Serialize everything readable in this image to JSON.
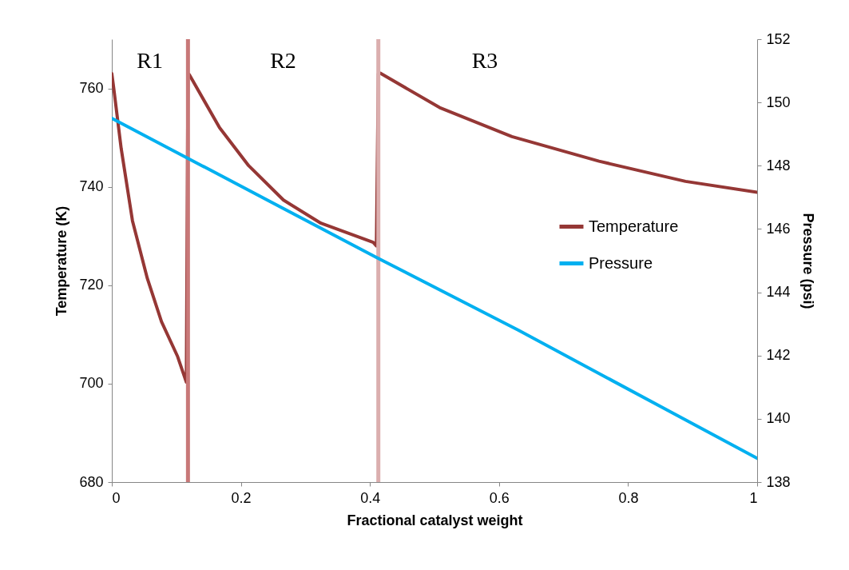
{
  "chart_data": {
    "type": "line",
    "xlabel": "Fractional catalyst weight",
    "ylabel": "Temperature (K)",
    "y2label": "Pressure (psi)",
    "series": [
      {
        "name": "Temperature",
        "color": "#953735",
        "x": [
          0,
          0.003,
          0.0145,
          0.032,
          0.055,
          0.077,
          0.102,
          0.1155,
          0.118,
          0.12,
          0.167,
          0.212,
          0.266,
          0.324,
          0.405,
          0.41,
          0.413,
          0.416,
          0.508,
          0.62,
          0.755,
          0.889,
          1
        ],
        "values": [
          763,
          760,
          747.8,
          733.1,
          721.4,
          712.6,
          705.5,
          700.3,
          763,
          762.8,
          752,
          744.3,
          737.3,
          732.6,
          728.7,
          728,
          763,
          763.1,
          756.1,
          750.2,
          745.2,
          741.1,
          738.9
        ]
      },
      {
        "name": "Pressure",
        "color": "#00b0f0",
        "axis": "y2",
        "x": [
          0,
          0.41,
          0.63,
          1
        ],
        "values": [
          149.5,
          145.1,
          142.8,
          138.75
        ]
      }
    ],
    "xlim": [
      0,
      1
    ],
    "xticks": [
      0,
      0.2,
      0.4,
      0.6,
      0.8,
      1
    ],
    "ylim": [
      680,
      770
    ],
    "yticks": [
      680,
      700,
      720,
      740,
      760
    ],
    "y2lim": [
      138,
      152
    ],
    "y2ticks": [
      138,
      140,
      142,
      144,
      146,
      148,
      150,
      152
    ],
    "ref_lines": [
      {
        "axis": "x",
        "value": 0.118,
        "color": "#c87878"
      },
      {
        "axis": "x",
        "value": 0.413,
        "color": "#dbaeae"
      }
    ],
    "annotations": [
      "R1",
      "R2",
      "R3"
    ],
    "legend": "right",
    "grid": false,
    "marker": "none",
    "line_style": "solid"
  }
}
